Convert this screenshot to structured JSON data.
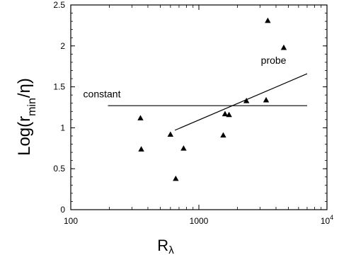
{
  "chart_data": {
    "type": "scatter",
    "x_scale": "log",
    "xlim": [
      100,
      10000
    ],
    "ylim": [
      0,
      2.5
    ],
    "grid": false,
    "legend": "none",
    "x_ticks": [
      {
        "value": 100,
        "label": "100"
      },
      {
        "value": 1000,
        "label": "1000"
      },
      {
        "value": 10000,
        "label": "10",
        "sup": "4"
      }
    ],
    "y_ticks": [
      {
        "value": 0,
        "label": "0"
      },
      {
        "value": 0.5,
        "label": "0.5"
      },
      {
        "value": 1,
        "label": "1"
      },
      {
        "value": 1.5,
        "label": "1.5"
      },
      {
        "value": 2,
        "label": "2"
      },
      {
        "value": 2.5,
        "label": "2.5"
      }
    ],
    "xlabel": {
      "main": "R",
      "sub": "λ"
    },
    "ylabel": {
      "pre": "Log(r",
      "sub": "min",
      "post": "/η)"
    },
    "points": [
      {
        "x": 350,
        "y": 1.12
      },
      {
        "x": 355,
        "y": 0.74
      },
      {
        "x": 600,
        "y": 0.92
      },
      {
        "x": 660,
        "y": 0.38
      },
      {
        "x": 760,
        "y": 0.75
      },
      {
        "x": 1550,
        "y": 0.91
      },
      {
        "x": 1600,
        "y": 1.17
      },
      {
        "x": 1720,
        "y": 1.16
      },
      {
        "x": 2350,
        "y": 1.33
      },
      {
        "x": 3350,
        "y": 1.34
      },
      {
        "x": 3450,
        "y": 2.31
      },
      {
        "x": 4600,
        "y": 1.98
      }
    ],
    "lines": [
      {
        "label": "constant",
        "points": [
          [
            195,
            1.27
          ],
          [
            7000,
            1.27
          ]
        ]
      },
      {
        "label": "probe",
        "points": [
          [
            650,
            0.97
          ],
          [
            7000,
            1.66
          ]
        ]
      }
    ],
    "annotations": [
      {
        "text": "constant",
        "x": 125,
        "y": 1.37
      },
      {
        "text": "probe",
        "x": 3050,
        "y": 1.78
      }
    ]
  }
}
